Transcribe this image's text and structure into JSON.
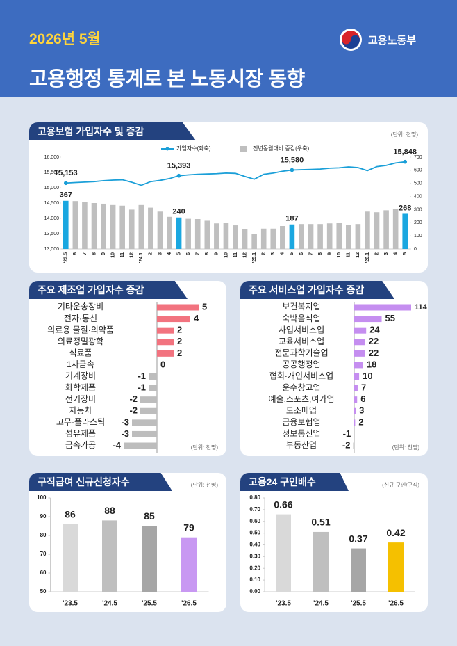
{
  "header": {
    "date": "2026년 5월",
    "ministry": "고용노동부",
    "title": "고용행정 통계로 본 노동시장 동향"
  },
  "chart_data": [
    {
      "type": "combo",
      "title": "고용보험 가입자수 및 증감",
      "unit": "(단위: 천명)",
      "categories": [
        "'23.5",
        "6",
        "7",
        "8",
        "9",
        "10",
        "11",
        "12",
        "'24.1",
        "2",
        "3",
        "4",
        "5",
        "6",
        "7",
        "8",
        "9",
        "10",
        "11",
        "12",
        "'25.1",
        "2",
        "3",
        "4",
        "5",
        "6",
        "7",
        "8",
        "9",
        "10",
        "11",
        "12",
        "'26.1",
        "2",
        "3",
        "4",
        "5"
      ],
      "series": [
        {
          "name": "가입자수(좌축)",
          "type": "line",
          "color": "#1a9fd8",
          "values": [
            15153,
            15170,
            15185,
            15200,
            15230,
            15250,
            15260,
            15180,
            15080,
            15200,
            15240,
            15300,
            15393,
            15420,
            15440,
            15450,
            15460,
            15480,
            15470,
            15370,
            15280,
            15440,
            15480,
            15540,
            15580,
            15590,
            15600,
            15610,
            15640,
            15650,
            15680,
            15660,
            15560,
            15690,
            15730,
            15810,
            15848
          ],
          "value_labels": [
            "15,153",
            null,
            null,
            null,
            null,
            null,
            null,
            null,
            null,
            null,
            null,
            null,
            "15,393",
            null,
            null,
            null,
            null,
            null,
            null,
            null,
            null,
            null,
            null,
            null,
            "15,580",
            null,
            null,
            null,
            null,
            null,
            null,
            null,
            null,
            null,
            null,
            null,
            "15,848"
          ]
        },
        {
          "name": "전년동월대비 증감(우축)",
          "type": "bar",
          "axis": "y2",
          "color": "#bfbfbf",
          "highlight_color": "#1aa7e0",
          "values": [
            367,
            365,
            357,
            350,
            345,
            335,
            330,
            300,
            335,
            315,
            285,
            245,
            240,
            230,
            228,
            215,
            195,
            200,
            180,
            150,
            115,
            155,
            155,
            175,
            187,
            190,
            190,
            190,
            195,
            200,
            185,
            190,
            285,
            280,
            295,
            305,
            268
          ],
          "value_labels": [
            "367",
            null,
            null,
            null,
            null,
            null,
            null,
            null,
            null,
            null,
            null,
            null,
            "240",
            null,
            null,
            null,
            null,
            null,
            null,
            null,
            null,
            null,
            null,
            null,
            "187",
            null,
            null,
            null,
            null,
            null,
            null,
            null,
            null,
            null,
            null,
            null,
            "268"
          ]
        }
      ],
      "ylim": [
        13000,
        16000
      ],
      "yticks": [
        {
          "value": 13000,
          "label": "13,000"
        },
        {
          "value": 13500,
          "label": "13,500"
        },
        {
          "value": 14000,
          "label": "14,000"
        },
        {
          "value": 14500,
          "label": "14,500"
        },
        {
          "value": 15000,
          "label": "15,000"
        },
        {
          "value": 15500,
          "label": "15,500"
        },
        {
          "value": 16000,
          "label": "16,000"
        }
      ],
      "y2lim": [
        0,
        700
      ],
      "y2ticks": [
        0,
        100,
        200,
        300,
        400,
        500,
        600,
        700
      ]
    },
    {
      "type": "hbar",
      "title": "주요 제조업 가입자수 증감",
      "unit": "(단위: 천명)",
      "categories": [
        "기타운송장비",
        "전자·통신",
        "의료용 물질·의약품",
        "의료정밀광학",
        "식료품",
        "1차금속",
        "기계장비",
        "화학제품",
        "전기장비",
        "자동차",
        "고무·플라스틱",
        "섬유제품",
        "금속가공"
      ],
      "values": [
        5,
        4,
        2,
        2,
        2,
        0,
        -1,
        -1,
        -2,
        -2,
        -3,
        -3,
        -4
      ],
      "positive_color": "#f2737f",
      "negative_color": "#bdbdbd",
      "xlim": [
        -7,
        6
      ]
    },
    {
      "type": "hbar",
      "title": "주요 서비스업 가입자수 증감",
      "unit": "(단위: 천명)",
      "categories": [
        "보건복지업",
        "숙박음식업",
        "사업서비스업",
        "교육서비스업",
        "전문과학기술업",
        "공공행정업",
        "협회·개인서비스업",
        "운수창고업",
        "예술,스포츠,여가업",
        "도소매업",
        "금융보험업",
        "정보통신업",
        "부동산업"
      ],
      "values": [
        114,
        55,
        24,
        22,
        22,
        18,
        10,
        7,
        6,
        3,
        2,
        -1,
        -2
      ],
      "positive_color": "#c58ef0",
      "negative_color": "#bdbdbd",
      "xlim": [
        -11,
        139
      ]
    },
    {
      "type": "bar",
      "title": "구직급여 신규신청자수",
      "unit": "(단위: 천명)",
      "categories": [
        "'23.5",
        "'24.5",
        "'25.5",
        "'26.5"
      ],
      "values": [
        86,
        88,
        85,
        79
      ],
      "colors": [
        "#d9d9d9",
        "#bfbfbf",
        "#a6a6a6",
        "#c898f2"
      ],
      "ylim": [
        50,
        100
      ],
      "yticks": [
        50,
        60,
        70,
        80,
        90,
        100
      ]
    },
    {
      "type": "bar",
      "title": "고용24 구인배수",
      "unit": "(신규 구인/구직)",
      "categories": [
        "'23.5",
        "'24.5",
        "'25.5",
        "'26.5"
      ],
      "values": [
        0.66,
        0.51,
        0.37,
        0.42
      ],
      "colors": [
        "#d9d9d9",
        "#bfbfbf",
        "#a6a6a6",
        "#f5c000"
      ],
      "ylim": [
        0,
        0.8
      ],
      "yticks": [
        {
          "value": 0,
          "label": "0.00"
        },
        {
          "value": 0.1,
          "label": "0.10"
        },
        {
          "value": 0.2,
          "label": "0.20"
        },
        {
          "value": 0.3,
          "label": "0.30"
        },
        {
          "value": 0.4,
          "label": "0.40"
        },
        {
          "value": 0.5,
          "label": "0.50"
        },
        {
          "value": 0.6,
          "label": "0.60"
        },
        {
          "value": 0.7,
          "label": "0.70"
        },
        {
          "value": 0.8,
          "label": "0.80"
        }
      ]
    }
  ]
}
